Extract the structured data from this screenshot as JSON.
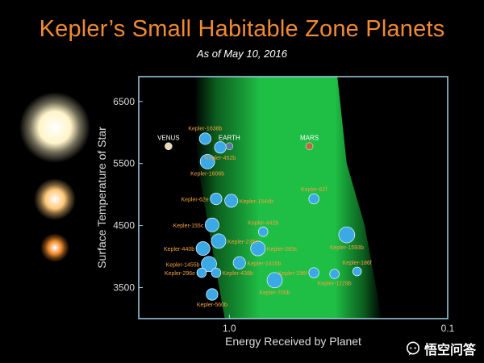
{
  "header": {
    "title": "Kepler’s Small Habitable Zone Planets",
    "subtitle": "As of May 10, 2016"
  },
  "watermark": {
    "text": "悟空问答",
    "icon": "chat-bubble-icon"
  },
  "chart_data": {
    "type": "scatter",
    "title": "Kepler’s Small Habitable Zone Planets",
    "subtitle": "As of May 10, 2016",
    "xlabel": "Energy Received by Planet",
    "ylabel": "Surface Temperature of Star",
    "x_scale": "log",
    "x_reversed": true,
    "xlim": [
      2.6,
      0.1
    ],
    "ylim": [
      3000,
      6900
    ],
    "x_ticks": [
      {
        "value": 1.0,
        "label": "1.0"
      },
      {
        "value": 0.1,
        "label": "0.1"
      }
    ],
    "y_ticks": [
      3500,
      4500,
      5500,
      6500
    ],
    "grid": false,
    "colors": {
      "planet_fill": "#3aa9e6",
      "planet_stroke": "#d8f1ff",
      "planet_label": "#f0a040",
      "reference_label": "#ffffff",
      "habitable_zone_inner": "#1fbf45",
      "habitable_zone_outer": "#0d6a22",
      "frame": "#9fd0e6",
      "axis_text": "#dddddd",
      "star_hot": "#fff4c8",
      "star_mid": "#ffc878",
      "star_cool": "#f08a2a"
    },
    "habitable_zone": [
      {
        "y": 6900,
        "x_inner": 1.45,
        "x_outer": 0.32
      },
      {
        "y": 5500,
        "x_inner": 1.4,
        "x_outer": 0.29
      },
      {
        "y": 4500,
        "x_inner": 1.25,
        "x_outer": 0.24
      },
      {
        "y": 3000,
        "x_inner": 1.05,
        "x_outer": 0.2
      }
    ],
    "reference_planets": [
      {
        "name": "VENUS",
        "x": 1.9,
        "y": 5778,
        "color": "#e8d8b8"
      },
      {
        "name": "EARTH",
        "x": 1.0,
        "y": 5778,
        "color": "#5a7aa8"
      },
      {
        "name": "MARS",
        "x": 0.43,
        "y": 5778,
        "color": "#b86a40"
      }
    ],
    "star_sizes": [
      "large",
      "medium",
      "small"
    ],
    "planets": [
      {
        "name": "Kepler-1638b",
        "x": 1.29,
        "y": 5900,
        "r": 1.6
      },
      {
        "name": "Kepler-452b",
        "x": 1.1,
        "y": 5760,
        "r": 1.6
      },
      {
        "name": "Kepler-1606b",
        "x": 1.26,
        "y": 5530,
        "r": 2.0
      },
      {
        "name": "Kepler-62e",
        "x": 1.15,
        "y": 4930,
        "r": 1.6
      },
      {
        "name": "Kepler-1544b",
        "x": 0.98,
        "y": 4900,
        "r": 1.8
      },
      {
        "name": "Kepler-62f",
        "x": 0.41,
        "y": 4930,
        "r": 1.4
      },
      {
        "name": "Kepler-155c",
        "x": 1.2,
        "y": 4510,
        "r": 1.9
      },
      {
        "name": "Kepler-442b",
        "x": 0.7,
        "y": 4400,
        "r": 1.3
      },
      {
        "name": "Kepler-1593b",
        "x": 0.29,
        "y": 4350,
        "r": 2.2
      },
      {
        "name": "Kepler-235e",
        "x": 1.12,
        "y": 4250,
        "r": 2.0
      },
      {
        "name": "Kepler-440b",
        "x": 1.32,
        "y": 4130,
        "r": 1.9
      },
      {
        "name": "Kepler-283c",
        "x": 0.74,
        "y": 4130,
        "r": 2.0
      },
      {
        "name": "Kepler-1455b",
        "x": 1.24,
        "y": 3880,
        "r": 2.1
      },
      {
        "name": "Kepler-1410b",
        "x": 0.9,
        "y": 3900,
        "r": 1.7
      },
      {
        "name": "Kepler-186f",
        "x": 0.26,
        "y": 3760,
        "r": 1.2
      },
      {
        "name": "Kepler-296e",
        "x": 1.34,
        "y": 3740,
        "r": 1.3
      },
      {
        "name": "Kepler-438b",
        "x": 1.15,
        "y": 3740,
        "r": 1.3
      },
      {
        "name": "Kepler-296f",
        "x": 0.41,
        "y": 3740,
        "r": 1.4
      },
      {
        "name": "Kepler-1229b",
        "x": 0.33,
        "y": 3720,
        "r": 1.3
      },
      {
        "name": "Kepler-705b",
        "x": 0.62,
        "y": 3620,
        "r": 2.1
      },
      {
        "name": "Kepler-560b",
        "x": 1.2,
        "y": 3390,
        "r": 1.6
      }
    ]
  }
}
